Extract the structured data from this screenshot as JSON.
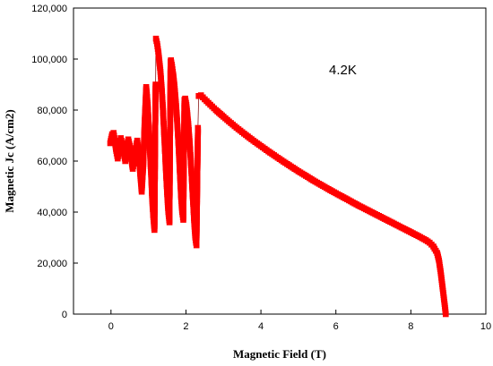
{
  "chart_data": {
    "type": "scatter",
    "xlabel": "Magnetic Field (T)",
    "ylabel": "Magnetic Jc  (A/cm2)",
    "xlim": [
      -1,
      10
    ],
    "ylim": [
      0,
      120000
    ],
    "x_ticks": [
      0,
      2,
      4,
      6,
      8,
      10
    ],
    "x_tick_labels": [
      "0",
      "2",
      "4",
      "6",
      "8",
      "10"
    ],
    "y_ticks": [
      0,
      20000,
      40000,
      60000,
      80000,
      100000,
      120000
    ],
    "y_tick_labels": [
      "0",
      "20,000",
      "40,000",
      "60,000",
      "80,000",
      "100,000",
      "120,000"
    ],
    "annotation": "4.2K",
    "grid": false,
    "marker": "square",
    "series_color": "#ff0000",
    "line_color": "#8b1a1a",
    "segments": [
      [
        [
          -0.02,
          67000
        ],
        [
          0.03,
          70500
        ],
        [
          0.07,
          71000
        ],
        [
          0.1,
          68000
        ],
        [
          0.14,
          64000
        ],
        [
          0.18,
          61000
        ],
        [
          0.22,
          66000
        ],
        [
          0.26,
          69000
        ],
        [
          0.3,
          67000
        ],
        [
          0.34,
          63000
        ],
        [
          0.38,
          60000
        ],
        [
          0.42,
          64000
        ],
        [
          0.46,
          68500
        ],
        [
          0.5,
          66000
        ],
        [
          0.54,
          61000
        ],
        [
          0.58,
          57000
        ],
        [
          0.62,
          60000
        ],
        [
          0.66,
          65000
        ],
        [
          0.7,
          68000
        ],
        [
          0.74,
          63000
        ],
        [
          0.78,
          55000
        ],
        [
          0.82,
          48000
        ],
        [
          0.86,
          58000
        ],
        [
          0.9,
          76000
        ],
        [
          0.94,
          89000
        ],
        [
          0.98,
          82000
        ],
        [
          1.02,
          70000
        ],
        [
          1.06,
          58000
        ],
        [
          1.1,
          45000
        ],
        [
          1.13,
          38000
        ],
        [
          1.16,
          33000
        ],
        [
          1.19,
          90000
        ]
      ],
      [
        [
          1.2,
          108000
        ],
        [
          1.23,
          106000
        ],
        [
          1.26,
          103000
        ],
        [
          1.29,
          99000
        ],
        [
          1.32,
          95000
        ],
        [
          1.35,
          89000
        ],
        [
          1.38,
          82000
        ],
        [
          1.41,
          73000
        ],
        [
          1.44,
          64000
        ],
        [
          1.47,
          55000
        ],
        [
          1.5,
          47000
        ],
        [
          1.53,
          40000
        ],
        [
          1.56,
          36000
        ],
        [
          1.59,
          99000
        ]
      ],
      [
        [
          1.6,
          99500
        ],
        [
          1.63,
          97000
        ],
        [
          1.66,
          94000
        ],
        [
          1.69,
          90000
        ],
        [
          1.72,
          85000
        ],
        [
          1.75,
          79000
        ],
        [
          1.78,
          72000
        ],
        [
          1.81,
          64000
        ],
        [
          1.84,
          55000
        ],
        [
          1.87,
          46000
        ],
        [
          1.9,
          40000
        ],
        [
          1.93,
          37000
        ],
        [
          1.96,
          84000
        ]
      ],
      [
        [
          1.98,
          84500
        ],
        [
          2.01,
          82000
        ],
        [
          2.04,
          78000
        ],
        [
          2.07,
          73000
        ],
        [
          2.1,
          67000
        ],
        [
          2.13,
          60000
        ],
        [
          2.16,
          52000
        ],
        [
          2.19,
          44000
        ],
        [
          2.22,
          36000
        ],
        [
          2.25,
          30000
        ],
        [
          2.28,
          27000
        ],
        [
          2.32,
          73000
        ]
      ],
      [
        [
          2.34,
          85500
        ],
        [
          2.4,
          85800
        ],
        [
          2.5,
          84200
        ],
        [
          2.6,
          82800
        ],
        [
          2.7,
          81400
        ],
        [
          2.8,
          80000
        ],
        [
          3.0,
          77400
        ],
        [
          3.2,
          74900
        ],
        [
          3.4,
          72500
        ],
        [
          3.6,
          70200
        ],
        [
          3.8,
          68000
        ],
        [
          4.0,
          65900
        ],
        [
          4.2,
          63800
        ],
        [
          4.4,
          61800
        ],
        [
          4.6,
          59800
        ],
        [
          4.8,
          57900
        ],
        [
          5.0,
          56000
        ],
        [
          5.2,
          54200
        ],
        [
          5.4,
          52400
        ],
        [
          5.6,
          50700
        ],
        [
          5.8,
          49000
        ],
        [
          6.0,
          47400
        ],
        [
          6.2,
          45800
        ],
        [
          6.4,
          44200
        ],
        [
          6.6,
          42600
        ],
        [
          6.8,
          41100
        ],
        [
          7.0,
          39600
        ],
        [
          7.2,
          38100
        ],
        [
          7.4,
          36600
        ],
        [
          7.6,
          35100
        ],
        [
          7.8,
          33600
        ],
        [
          8.0,
          32100
        ],
        [
          8.2,
          30600
        ],
        [
          8.4,
          29000
        ],
        [
          8.5,
          28000
        ],
        [
          8.6,
          26500
        ],
        [
          8.7,
          24000
        ],
        [
          8.75,
          21000
        ],
        [
          8.8,
          16000
        ],
        [
          8.85,
          10000
        ],
        [
          8.9,
          4000
        ],
        [
          8.93,
          0
        ]
      ]
    ]
  }
}
